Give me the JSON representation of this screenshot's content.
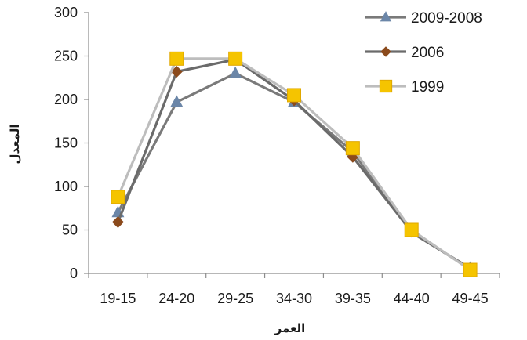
{
  "chart_data": {
    "type": "line",
    "categories": [
      "19-15",
      "24-20",
      "29-25",
      "34-30",
      "39-35",
      "44-40",
      "49-45"
    ],
    "xlabel": "العمر",
    "ylabel": "المعدل",
    "ylim": [
      0,
      300
    ],
    "yticks": [
      0,
      50,
      100,
      150,
      200,
      250,
      300
    ],
    "grid": false,
    "legend_position": "top-right",
    "series": [
      {
        "name": "2009-2008",
        "marker": "triangle",
        "color": "#6b86a8",
        "line_color": "#7a7a7a",
        "values": [
          70,
          197,
          230,
          197,
          140,
          47,
          6
        ]
      },
      {
        "name": "2006",
        "marker": "diamond",
        "color": "#8b4a1c",
        "line_color": "#6b6b6b",
        "values": [
          59,
          232,
          246,
          199,
          134,
          48,
          5
        ]
      },
      {
        "name": "1999",
        "marker": "square",
        "color": "#f5c400",
        "line_color": "#bdbdbd",
        "values": [
          88,
          247,
          247,
          205,
          144,
          50,
          4
        ]
      }
    ]
  }
}
